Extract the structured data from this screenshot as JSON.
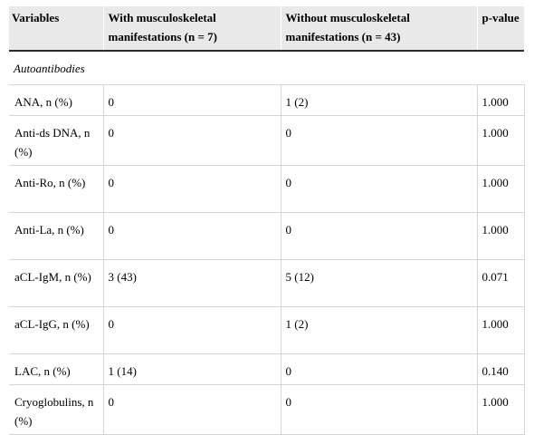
{
  "table": {
    "headers": [
      "Variables",
      "With musculoskeletal manifestations (n = 7)",
      "Without musculoskeletal manifestations (n = 43)",
      "p-value"
    ],
    "section_label": "Autoantibodies",
    "rows": [
      {
        "variable": "ANA, n (%)",
        "with": "0",
        "without": "1 (2)",
        "p": "1.000"
      },
      {
        "variable": "Anti-ds DNA, n (%)",
        "with": "0",
        "without": "0",
        "p": "1.000"
      },
      {
        "variable": "Anti-Ro, n (%)",
        "with": "0",
        "without": "0",
        "p": "1.000"
      },
      {
        "variable": "Anti-La, n (%)",
        "with": "0",
        "without": "0",
        "p": "1.000"
      },
      {
        "variable": "aCL-IgM, n (%)",
        "with": "3 (43)",
        "without": "5 (12)",
        "p": "0.071"
      },
      {
        "variable": "aCL-IgG, n (%)",
        "with": "0",
        "without": "1 (2)",
        "p": "1.000"
      },
      {
        "variable": "LAC, n (%)",
        "with": "1 (14)",
        "without": "0",
        "p": "0.140"
      },
      {
        "variable": "Cryoglobulins, n (%)",
        "with": "0",
        "without": "0",
        "p": "1.000"
      }
    ]
  }
}
